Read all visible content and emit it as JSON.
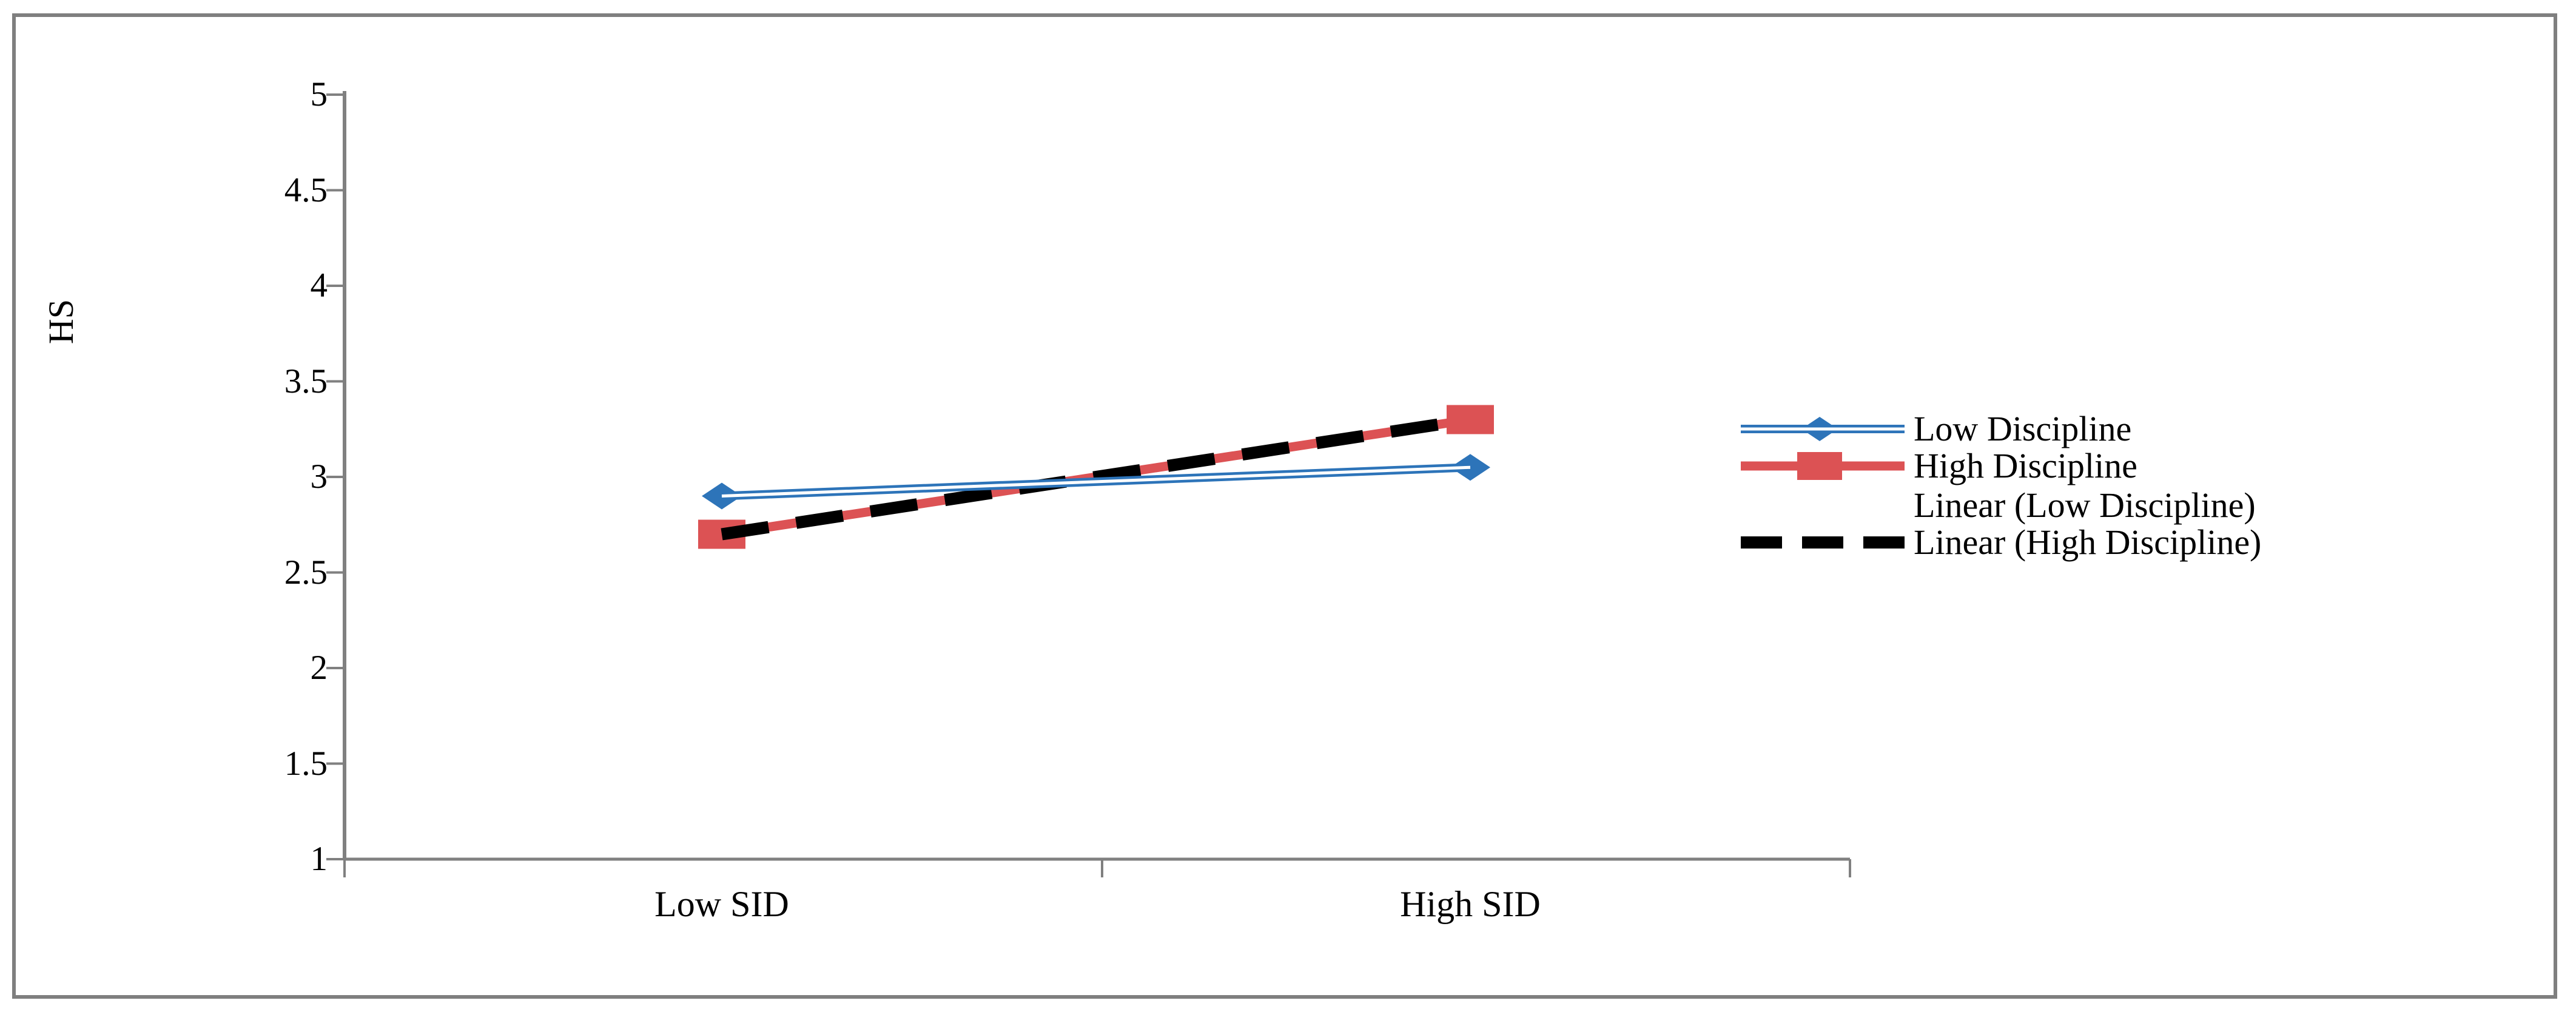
{
  "figure": {
    "background": "#ffffff",
    "border_color": "#7f7f7f"
  },
  "chart_data": {
    "type": "line",
    "title": "",
    "xlabel": "",
    "ylabel": "HS",
    "categories": [
      "Low SID",
      "High SID"
    ],
    "series": [
      {
        "name": "Low Discipline",
        "values": [
          2.9,
          3.05
        ],
        "color": "#2D74B9",
        "marker": "diamond",
        "line_style": "double"
      },
      {
        "name": "High Discipline",
        "values": [
          2.7,
          3.3
        ],
        "color": "#DC5254",
        "marker": "square",
        "line_style": "solid"
      }
    ],
    "trendlines": [
      {
        "name": "Linear (Low Discipline)",
        "series": "Low Discipline",
        "color": "#FFFFFF",
        "style": "solid"
      },
      {
        "name": "Linear (High Discipline)",
        "series": "High Discipline",
        "color": "#000000",
        "style": "dashed"
      }
    ],
    "ylim": [
      1,
      5
    ],
    "ytick_step": 0.5,
    "yticks": [
      "5",
      "4.5",
      "4",
      "3.5",
      "3",
      "2.5",
      "2",
      "1.5",
      "1"
    ],
    "ytick_values": [
      5,
      4.5,
      4,
      3.5,
      3,
      2.5,
      2,
      1.5,
      1
    ],
    "grid": false,
    "legend_position": "right",
    "legend": [
      "Low Discipline",
      "High Discipline",
      "Linear (Low Discipline)",
      "Linear (High Discipline)"
    ],
    "axis_color": "#808080"
  }
}
